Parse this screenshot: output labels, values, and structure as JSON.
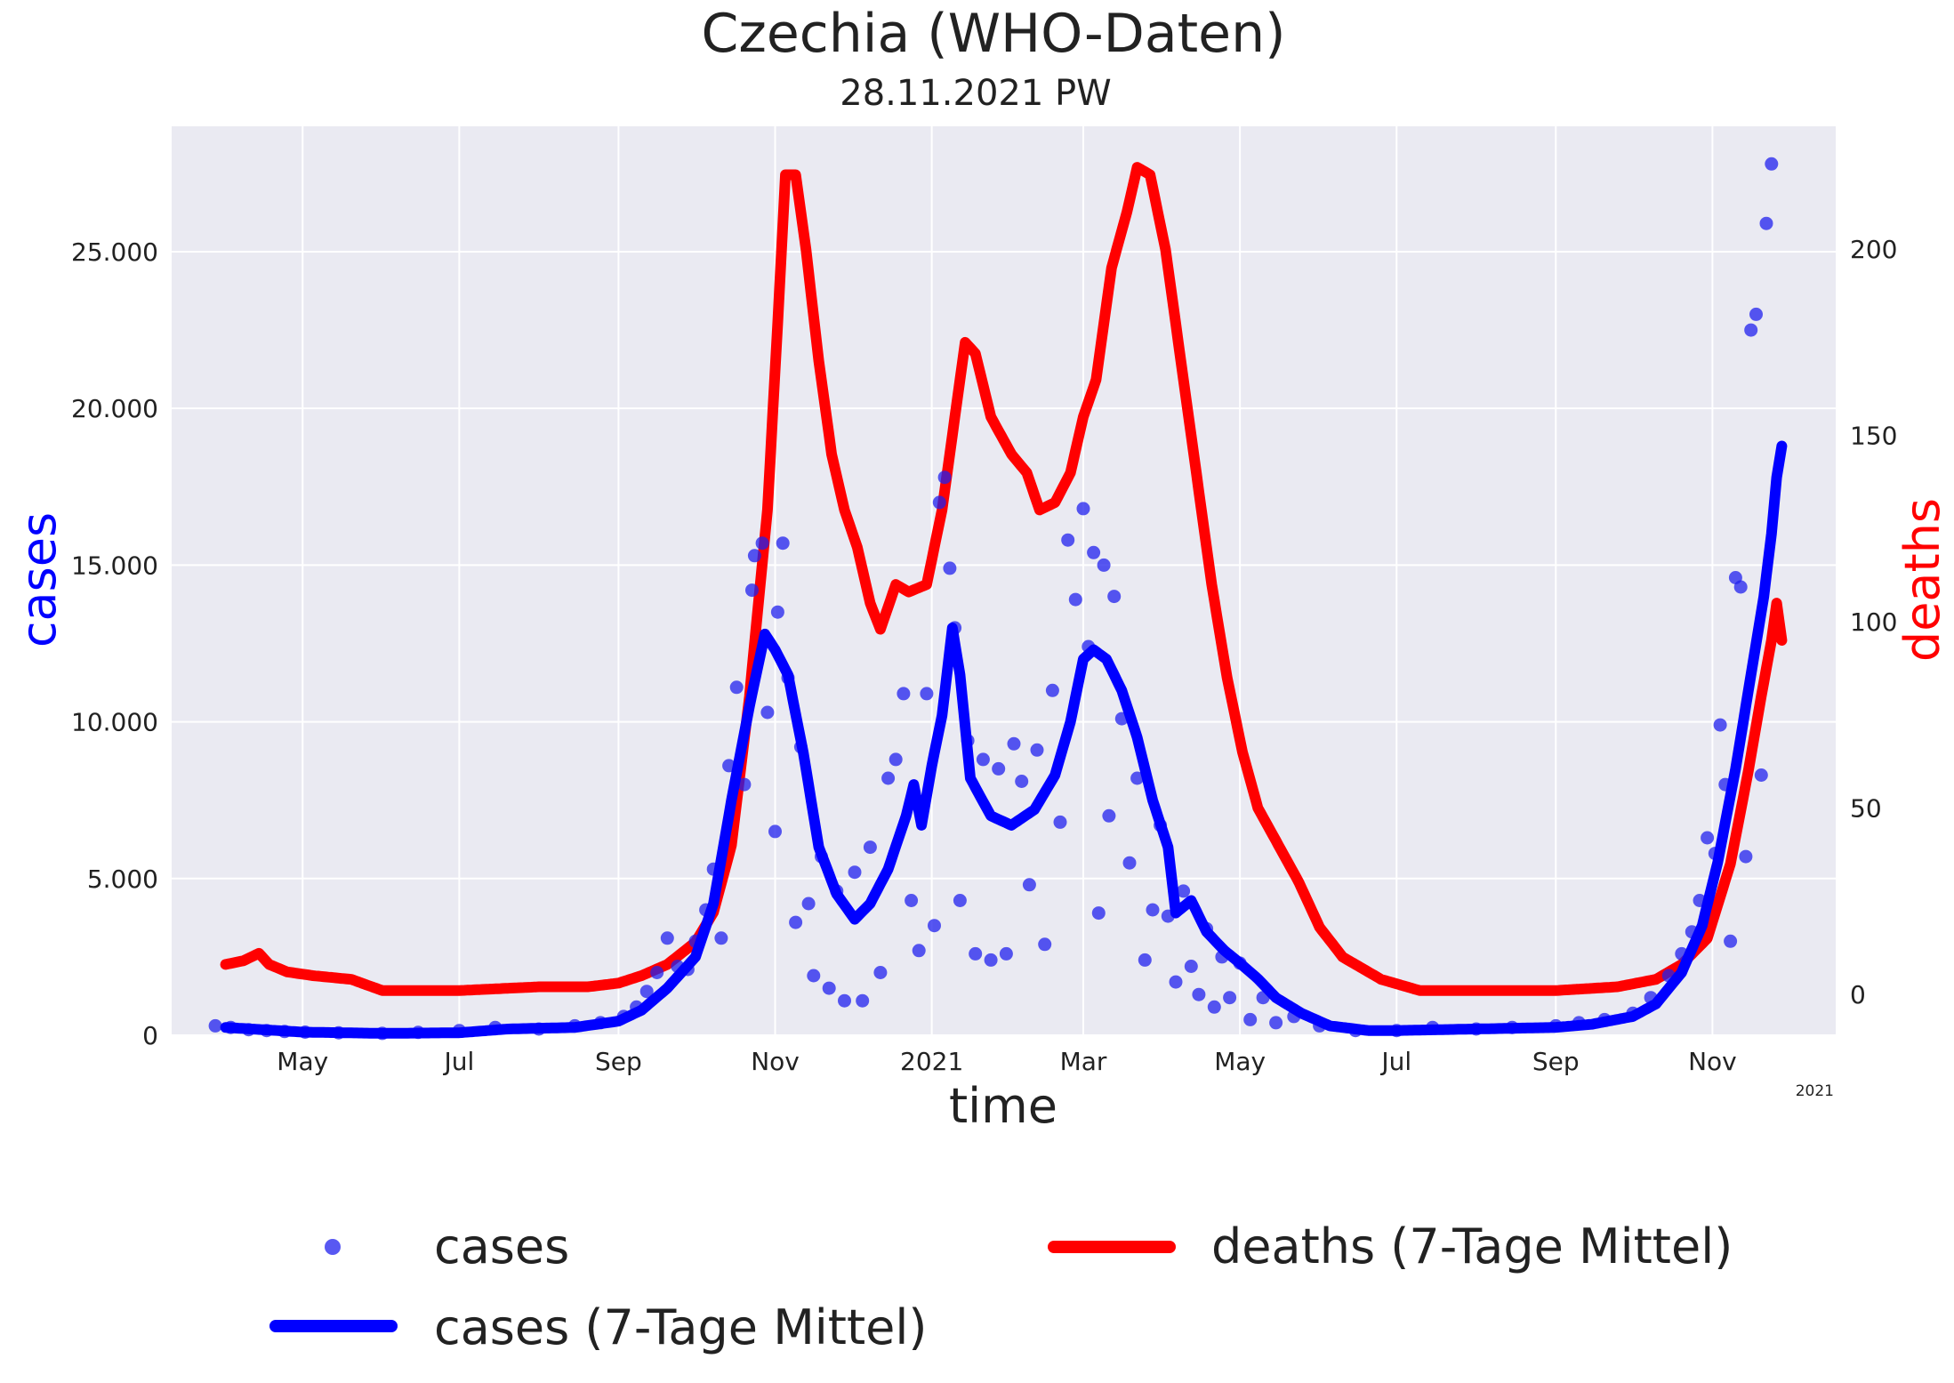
{
  "chart_data": {
    "type": "line",
    "title": "Czechia  (WHO-Daten)",
    "subtitle": "28.11.2021 PW",
    "xlabel": "time",
    "ylabel_left": "cases",
    "ylabel_right": "deaths",
    "x_axis_year_note": "2021",
    "x_ticks": [
      {
        "date": "2020-05-01",
        "label": "May"
      },
      {
        "date": "2020-07-01",
        "label": "Jul"
      },
      {
        "date": "2020-09-01",
        "label": "Sep"
      },
      {
        "date": "2020-11-01",
        "label": "Nov"
      },
      {
        "date": "2021-01-01",
        "label": "2021"
      },
      {
        "date": "2021-03-01",
        "label": "Mar"
      },
      {
        "date": "2021-05-01",
        "label": "May"
      },
      {
        "date": "2021-07-01",
        "label": "Jul"
      },
      {
        "date": "2021-09-01",
        "label": "Sep"
      },
      {
        "date": "2021-11-01",
        "label": "Nov"
      }
    ],
    "xlim": [
      "2020-03-11",
      "2021-12-19"
    ],
    "ylim_left": [
      0,
      29000
    ],
    "yticks_left": [
      {
        "value": 0,
        "label": "0"
      },
      {
        "value": 5000,
        "label": "5.000"
      },
      {
        "value": 10000,
        "label": "10.000"
      },
      {
        "value": 15000,
        "label": "15.000"
      },
      {
        "value": 20000,
        "label": "20.000"
      },
      {
        "value": 25000,
        "label": "25.000"
      }
    ],
    "ylim_right": [
      -11,
      233
    ],
    "yticks_right": [
      {
        "value": 0,
        "label": "0"
      },
      {
        "value": 50,
        "label": "50"
      },
      {
        "value": 100,
        "label": "100"
      },
      {
        "value": 150,
        "label": "150"
      },
      {
        "value": 200,
        "label": "200"
      }
    ],
    "grid": true,
    "legend": {
      "placement": "below",
      "entries": [
        {
          "name": "cases",
          "marker": "dot",
          "color": "#2020ee"
        },
        {
          "name": "cases (7-Tage Mittel)",
          "marker": "line",
          "color": "#0000ff"
        },
        {
          "name": "deaths (7-Tage Mittel)",
          "marker": "line",
          "color": "#ff0000"
        }
      ]
    },
    "series": [
      {
        "name": "cases (7-Tage Mittel)",
        "axis": "left",
        "color": "#0000ff",
        "points": [
          [
            "2020-04-01",
            250
          ],
          [
            "2020-04-15",
            180
          ],
          [
            "2020-05-01",
            100
          ],
          [
            "2020-06-01",
            60
          ],
          [
            "2020-07-01",
            80
          ],
          [
            "2020-07-20",
            200
          ],
          [
            "2020-08-15",
            250
          ],
          [
            "2020-09-01",
            450
          ],
          [
            "2020-09-10",
            800
          ],
          [
            "2020-09-20",
            1500
          ],
          [
            "2020-10-01",
            2500
          ],
          [
            "2020-10-08",
            4200
          ],
          [
            "2020-10-15",
            7500
          ],
          [
            "2020-10-22",
            10500
          ],
          [
            "2020-10-28",
            12800
          ],
          [
            "2020-11-01",
            12300
          ],
          [
            "2020-11-06",
            11500
          ],
          [
            "2020-11-12",
            9000
          ],
          [
            "2020-11-18",
            6000
          ],
          [
            "2020-11-25",
            4500
          ],
          [
            "2020-12-02",
            3700
          ],
          [
            "2020-12-08",
            4200
          ],
          [
            "2020-12-15",
            5300
          ],
          [
            "2020-12-22",
            7000
          ],
          [
            "2020-12-25",
            8000
          ],
          [
            "2020-12-28",
            6700
          ],
          [
            "2021-01-01",
            8600
          ],
          [
            "2021-01-05",
            10200
          ],
          [
            "2021-01-09",
            13000
          ],
          [
            "2021-01-12",
            11500
          ],
          [
            "2021-01-16",
            8200
          ],
          [
            "2021-01-24",
            7000
          ],
          [
            "2021-02-01",
            6700
          ],
          [
            "2021-02-10",
            7200
          ],
          [
            "2021-02-18",
            8300
          ],
          [
            "2021-02-24",
            10000
          ],
          [
            "2021-03-01",
            12000
          ],
          [
            "2021-03-05",
            12300
          ],
          [
            "2021-03-10",
            12000
          ],
          [
            "2021-03-16",
            11000
          ],
          [
            "2021-03-22",
            9500
          ],
          [
            "2021-03-28",
            7500
          ],
          [
            "2021-04-03",
            6000
          ],
          [
            "2021-04-06",
            3900
          ],
          [
            "2021-04-12",
            4300
          ],
          [
            "2021-04-18",
            3300
          ],
          [
            "2021-04-25",
            2700
          ],
          [
            "2021-05-01",
            2300
          ],
          [
            "2021-05-08",
            1800
          ],
          [
            "2021-05-15",
            1200
          ],
          [
            "2021-05-25",
            700
          ],
          [
            "2021-06-05",
            300
          ],
          [
            "2021-06-20",
            150
          ],
          [
            "2021-07-01",
            150
          ],
          [
            "2021-08-01",
            200
          ],
          [
            "2021-09-01",
            250
          ],
          [
            "2021-09-15",
            350
          ],
          [
            "2021-10-01",
            600
          ],
          [
            "2021-10-10",
            1000
          ],
          [
            "2021-10-20",
            2000
          ],
          [
            "2021-10-28",
            3500
          ],
          [
            "2021-11-03",
            5500
          ],
          [
            "2021-11-10",
            8500
          ],
          [
            "2021-11-16",
            11500
          ],
          [
            "2021-11-21",
            14000
          ],
          [
            "2021-11-24",
            16000
          ],
          [
            "2021-11-26",
            17800
          ],
          [
            "2021-11-28",
            18800
          ]
        ]
      },
      {
        "name": "deaths (7-Tage Mittel)",
        "axis": "right",
        "color": "#ff0000",
        "points": [
          [
            "2020-04-01",
            8
          ],
          [
            "2020-04-08",
            9
          ],
          [
            "2020-04-14",
            11
          ],
          [
            "2020-04-18",
            8
          ],
          [
            "2020-04-25",
            6
          ],
          [
            "2020-05-05",
            5
          ],
          [
            "2020-05-20",
            4
          ],
          [
            "2020-06-01",
            1
          ],
          [
            "2020-07-01",
            1
          ],
          [
            "2020-08-01",
            2
          ],
          [
            "2020-08-20",
            2
          ],
          [
            "2020-09-01",
            3
          ],
          [
            "2020-09-10",
            5
          ],
          [
            "2020-09-20",
            8
          ],
          [
            "2020-10-01",
            14
          ],
          [
            "2020-10-08",
            22
          ],
          [
            "2020-10-15",
            40
          ],
          [
            "2020-10-22",
            80
          ],
          [
            "2020-10-29",
            130
          ],
          [
            "2020-11-02",
            180
          ],
          [
            "2020-11-05",
            220
          ],
          [
            "2020-11-09",
            220
          ],
          [
            "2020-11-13",
            200
          ],
          [
            "2020-11-18",
            170
          ],
          [
            "2020-11-23",
            145
          ],
          [
            "2020-11-28",
            130
          ],
          [
            "2020-12-03",
            120
          ],
          [
            "2020-12-08",
            105
          ],
          [
            "2020-12-12",
            98
          ],
          [
            "2020-12-18",
            110
          ],
          [
            "2020-12-23",
            108
          ],
          [
            "2020-12-30",
            110
          ],
          [
            "2021-01-05",
            130
          ],
          [
            "2021-01-10",
            155
          ],
          [
            "2021-01-14",
            175
          ],
          [
            "2021-01-18",
            172
          ],
          [
            "2021-01-24",
            155
          ],
          [
            "2021-02-01",
            145
          ],
          [
            "2021-02-07",
            140
          ],
          [
            "2021-02-12",
            130
          ],
          [
            "2021-02-18",
            132
          ],
          [
            "2021-02-24",
            140
          ],
          [
            "2021-03-01",
            155
          ],
          [
            "2021-03-06",
            165
          ],
          [
            "2021-03-12",
            195
          ],
          [
            "2021-03-18",
            210
          ],
          [
            "2021-03-22",
            222
          ],
          [
            "2021-03-27",
            220
          ],
          [
            "2021-04-02",
            200
          ],
          [
            "2021-04-08",
            170
          ],
          [
            "2021-04-14",
            140
          ],
          [
            "2021-04-20",
            110
          ],
          [
            "2021-04-26",
            85
          ],
          [
            "2021-05-02",
            65
          ],
          [
            "2021-05-08",
            50
          ],
          [
            "2021-05-16",
            40
          ],
          [
            "2021-05-24",
            30
          ],
          [
            "2021-06-01",
            18
          ],
          [
            "2021-06-10",
            10
          ],
          [
            "2021-06-25",
            4
          ],
          [
            "2021-07-10",
            1
          ],
          [
            "2021-08-01",
            1
          ],
          [
            "2021-09-01",
            1
          ],
          [
            "2021-09-25",
            2
          ],
          [
            "2021-10-10",
            4
          ],
          [
            "2021-10-20",
            8
          ],
          [
            "2021-10-30",
            15
          ],
          [
            "2021-11-08",
            35
          ],
          [
            "2021-11-15",
            60
          ],
          [
            "2021-11-20",
            80
          ],
          [
            "2021-11-24",
            95
          ],
          [
            "2021-11-26",
            105
          ],
          [
            "2021-11-28",
            95
          ]
        ]
      }
    ],
    "scatter": {
      "name": "cases",
      "axis": "left",
      "color": "#2020ee",
      "points": [
        [
          "2020-03-28",
          300
        ],
        [
          "2020-04-03",
          250
        ],
        [
          "2020-04-10",
          180
        ],
        [
          "2020-04-17",
          150
        ],
        [
          "2020-04-24",
          120
        ],
        [
          "2020-05-02",
          100
        ],
        [
          "2020-05-15",
          80
        ],
        [
          "2020-06-01",
          60
        ],
        [
          "2020-06-15",
          90
        ],
        [
          "2020-07-01",
          150
        ],
        [
          "2020-07-15",
          250
        ],
        [
          "2020-08-01",
          200
        ],
        [
          "2020-08-15",
          300
        ],
        [
          "2020-08-25",
          400
        ],
        [
          "2020-09-03",
          600
        ],
        [
          "2020-09-08",
          900
        ],
        [
          "2020-09-12",
          1400
        ],
        [
          "2020-09-16",
          2000
        ],
        [
          "2020-09-20",
          3100
        ],
        [
          "2020-09-24",
          2200
        ],
        [
          "2020-09-28",
          2100
        ],
        [
          "2020-10-01",
          3000
        ],
        [
          "2020-10-05",
          4000
        ],
        [
          "2020-10-08",
          5300
        ],
        [
          "2020-10-11",
          3100
        ],
        [
          "2020-10-14",
          8600
        ],
        [
          "2020-10-17",
          11100
        ],
        [
          "2020-10-20",
          8000
        ],
        [
          "2020-10-23",
          14200
        ],
        [
          "2020-10-24",
          15300
        ],
        [
          "2020-10-27",
          15700
        ],
        [
          "2020-10-29",
          10300
        ],
        [
          "2020-11-01",
          6500
        ],
        [
          "2020-11-02",
          13500
        ],
        [
          "2020-11-04",
          15700
        ],
        [
          "2020-11-06",
          11400
        ],
        [
          "2020-11-09",
          3600
        ],
        [
          "2020-11-11",
          9200
        ],
        [
          "2020-11-14",
          4200
        ],
        [
          "2020-11-16",
          1900
        ],
        [
          "2020-11-19",
          5700
        ],
        [
          "2020-11-22",
          1500
        ],
        [
          "2020-11-25",
          4600
        ],
        [
          "2020-11-28",
          1100
        ],
        [
          "2020-12-02",
          5200
        ],
        [
          "2020-12-05",
          1100
        ],
        [
          "2020-12-08",
          6000
        ],
        [
          "2020-12-12",
          2000
        ],
        [
          "2020-12-15",
          8200
        ],
        [
          "2020-12-18",
          8800
        ],
        [
          "2020-12-21",
          10900
        ],
        [
          "2020-12-24",
          4300
        ],
        [
          "2020-12-27",
          2700
        ],
        [
          "2020-12-30",
          10900
        ],
        [
          "2021-01-02",
          3500
        ],
        [
          "2021-01-04",
          17000
        ],
        [
          "2021-01-06",
          17800
        ],
        [
          "2021-01-08",
          14900
        ],
        [
          "2021-01-10",
          13000
        ],
        [
          "2021-01-12",
          4300
        ],
        [
          "2021-01-15",
          9400
        ],
        [
          "2021-01-18",
          2600
        ],
        [
          "2021-01-21",
          8800
        ],
        [
          "2021-01-24",
          2400
        ],
        [
          "2021-01-27",
          8500
        ],
        [
          "2021-01-30",
          2600
        ],
        [
          "2021-02-02",
          9300
        ],
        [
          "2021-02-05",
          8100
        ],
        [
          "2021-02-08",
          4800
        ],
        [
          "2021-02-11",
          9100
        ],
        [
          "2021-02-14",
          2900
        ],
        [
          "2021-02-17",
          11000
        ],
        [
          "2021-02-20",
          6800
        ],
        [
          "2021-02-23",
          15800
        ],
        [
          "2021-02-26",
          13900
        ],
        [
          "2021-03-01",
          16800
        ],
        [
          "2021-03-03",
          12400
        ],
        [
          "2021-03-05",
          15400
        ],
        [
          "2021-03-07",
          3900
        ],
        [
          "2021-03-09",
          15000
        ],
        [
          "2021-03-11",
          7000
        ],
        [
          "2021-03-13",
          14000
        ],
        [
          "2021-03-16",
          10100
        ],
        [
          "2021-03-19",
          5500
        ],
        [
          "2021-03-22",
          8200
        ],
        [
          "2021-03-25",
          2400
        ],
        [
          "2021-03-28",
          4000
        ],
        [
          "2021-03-31",
          6700
        ],
        [
          "2021-04-03",
          3800
        ],
        [
          "2021-04-06",
          1700
        ],
        [
          "2021-04-09",
          4600
        ],
        [
          "2021-04-12",
          2200
        ],
        [
          "2021-04-15",
          1300
        ],
        [
          "2021-04-18",
          3400
        ],
        [
          "2021-04-21",
          900
        ],
        [
          "2021-04-24",
          2500
        ],
        [
          "2021-04-27",
          1200
        ],
        [
          "2021-05-01",
          2300
        ],
        [
          "2021-05-05",
          500
        ],
        [
          "2021-05-10",
          1200
        ],
        [
          "2021-05-15",
          400
        ],
        [
          "2021-05-22",
          600
        ],
        [
          "2021-06-01",
          300
        ],
        [
          "2021-06-15",
          150
        ],
        [
          "2021-07-01",
          150
        ],
        [
          "2021-07-15",
          250
        ],
        [
          "2021-08-01",
          200
        ],
        [
          "2021-08-15",
          250
        ],
        [
          "2021-09-01",
          300
        ],
        [
          "2021-09-10",
          400
        ],
        [
          "2021-09-20",
          500
        ],
        [
          "2021-10-01",
          700
        ],
        [
          "2021-10-08",
          1200
        ],
        [
          "2021-10-15",
          1900
        ],
        [
          "2021-10-20",
          2600
        ],
        [
          "2021-10-24",
          3300
        ],
        [
          "2021-10-27",
          4300
        ],
        [
          "2021-10-30",
          6300
        ],
        [
          "2021-11-02",
          5800
        ],
        [
          "2021-11-04",
          9900
        ],
        [
          "2021-11-06",
          8000
        ],
        [
          "2021-11-08",
          3000
        ],
        [
          "2021-11-10",
          14600
        ],
        [
          "2021-11-12",
          14300
        ],
        [
          "2021-11-14",
          5700
        ],
        [
          "2021-11-16",
          22500
        ],
        [
          "2021-11-18",
          23000
        ],
        [
          "2021-11-20",
          8300
        ],
        [
          "2021-11-22",
          25900
        ],
        [
          "2021-11-24",
          27800
        ]
      ]
    }
  }
}
